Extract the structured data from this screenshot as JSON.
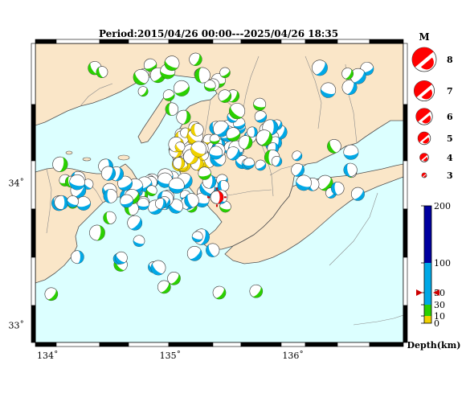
{
  "title": "Period:2015/04/26 00:00---2025/04/26 18:35",
  "map": {
    "x_ticks": [
      {
        "lon": 134,
        "label": "134˚"
      },
      {
        "lon": 135,
        "label": "135˚"
      },
      {
        "lon": 136,
        "label": "136˚"
      }
    ],
    "y_ticks": [
      {
        "lat": 34,
        "label": "34˚"
      },
      {
        "lat": 33,
        "label": "33˚"
      }
    ],
    "lon_range": [
      133.9,
      136.9
    ],
    "lat_range": [
      32.88,
      34.98
    ],
    "colors": {
      "sea": "#dcffff",
      "land": "#fae6c8",
      "coast": "#505050",
      "border": "#8a8a8a"
    },
    "main_event": {
      "lon": 135.38,
      "lat": 33.9,
      "color": "#ff0000"
    }
  },
  "magnitude_legend": {
    "title": "M",
    "items": [
      {
        "label": "8",
        "mag": 8
      },
      {
        "label": "7",
        "mag": 7
      },
      {
        "label": "6",
        "mag": 6
      },
      {
        "label": "5",
        "mag": 5
      },
      {
        "label": "4",
        "mag": 4
      },
      {
        "label": "3",
        "mag": 3
      }
    ],
    "color": "#ff0000"
  },
  "depth_scale": {
    "title": "Depth(km)",
    "ticks": [
      "200",
      "100",
      "50",
      "30",
      "10",
      "0"
    ],
    "segments": [
      {
        "from": 0,
        "to": 10,
        "color": "#f0d200"
      },
      {
        "from": 10,
        "to": 30,
        "color": "#2ad000"
      },
      {
        "from": 30,
        "to": 100,
        "color": "#00a8e6"
      },
      {
        "from": 100,
        "to": 200,
        "color": "#0000a0"
      }
    ],
    "marker_depth": 50,
    "marker_color": "#cc0000"
  }
}
